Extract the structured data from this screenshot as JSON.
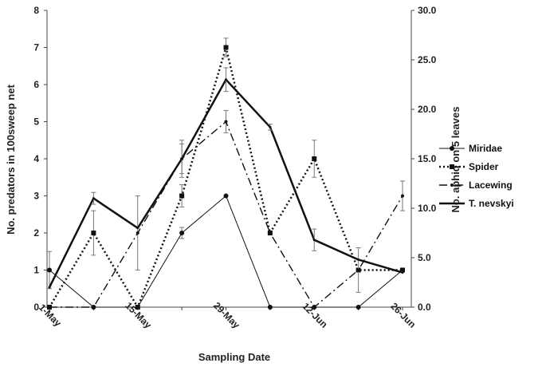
{
  "chart_data": {
    "type": "line",
    "x_tick_labels": [
      "1-May",
      "15-May",
      "29-May",
      "12-Jun",
      "26-Jun"
    ],
    "xlabel": "Sampling Date",
    "ylabel_left": "No. predators in 100sweep net",
    "ylabel_right": "No. aphid on 5 leaves",
    "ylim_left": [
      0,
      8
    ],
    "ylim_right": [
      0,
      30
    ],
    "y_ticks_left": [
      "0",
      "1",
      "2",
      "3",
      "4",
      "5",
      "6",
      "7",
      "8"
    ],
    "y_ticks_right": [
      "0.0",
      "5.0",
      "10.0",
      "15.0",
      "20.0",
      "25.0",
      "30.0"
    ],
    "x_positions": [
      0,
      1,
      2,
      3,
      4,
      5,
      6,
      7,
      8
    ],
    "grid": false,
    "legend_position": "right",
    "series": [
      {
        "name": "Miridae",
        "axis": "left",
        "style": "thin-solid",
        "color": "#111111",
        "values": [
          1,
          0,
          0,
          2,
          3,
          0,
          0,
          0,
          1
        ],
        "errors": [
          0.5,
          0,
          0,
          0.15,
          0,
          0,
          0,
          0,
          0
        ]
      },
      {
        "name": "Spider",
        "axis": "left",
        "style": "dotted",
        "color": "#111111",
        "values": [
          0,
          2,
          0,
          3,
          7,
          2,
          4,
          1,
          1
        ],
        "errors": [
          0,
          0.6,
          0,
          0.3,
          0.25,
          0,
          0.5,
          0,
          0
        ]
      },
      {
        "name": "Lacewing",
        "axis": "left",
        "style": "dash-dot",
        "color": "#111111",
        "values": [
          0,
          0,
          2,
          4,
          5,
          2,
          0,
          1,
          3
        ],
        "errors": [
          0,
          0,
          1,
          0.5,
          0.3,
          0,
          0,
          0.6,
          0.4
        ]
      },
      {
        "name": "T. nevskyi",
        "axis": "right",
        "style": "thick-solid",
        "color": "#111111",
        "values": [
          2.0,
          11.0,
          8.0,
          15.0,
          23.0,
          18.2,
          6.8,
          4.8,
          3.5
        ],
        "errors": [
          0,
          0.6,
          0,
          1.5,
          1.2,
          0.3,
          1.1,
          0,
          0
        ]
      }
    ]
  }
}
